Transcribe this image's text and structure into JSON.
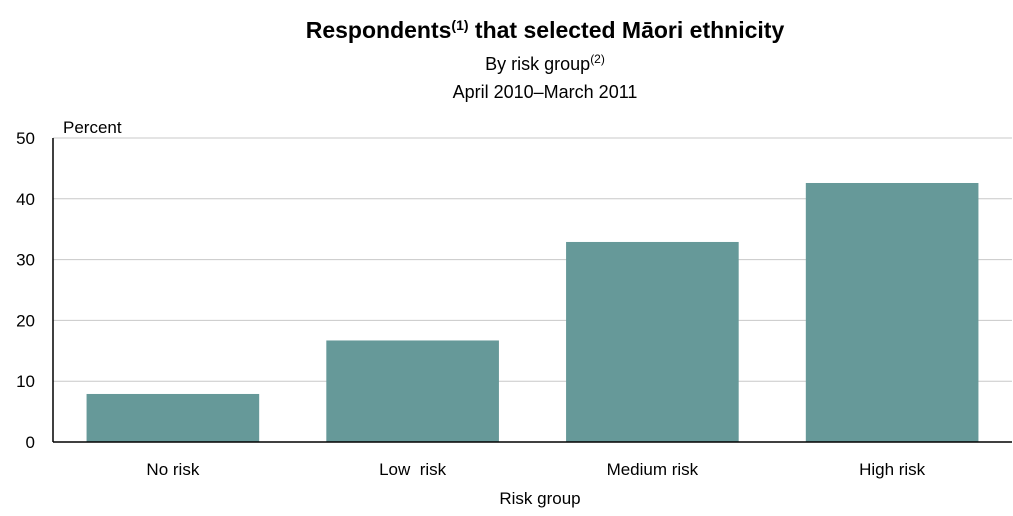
{
  "chart_data": {
    "type": "bar",
    "title": "Respondents",
    "title_footnote": "(1)",
    "title_rest": " that selected Māori ethnicity",
    "subtitle": "By risk group",
    "subtitle_footnote": "(2)",
    "period": "April 2010–March 2011",
    "ylabel": "Percent",
    "xlabel": "Risk group",
    "ylim": [
      0,
      50
    ],
    "yticks": [
      0,
      10,
      20,
      30,
      40,
      50
    ],
    "categories": [
      "No risk",
      "Low  risk",
      "Medium risk",
      "High risk"
    ],
    "values": [
      7.9,
      16.7,
      32.9,
      42.6
    ],
    "bar_color": "#669999",
    "grid": true,
    "legend": "none"
  }
}
